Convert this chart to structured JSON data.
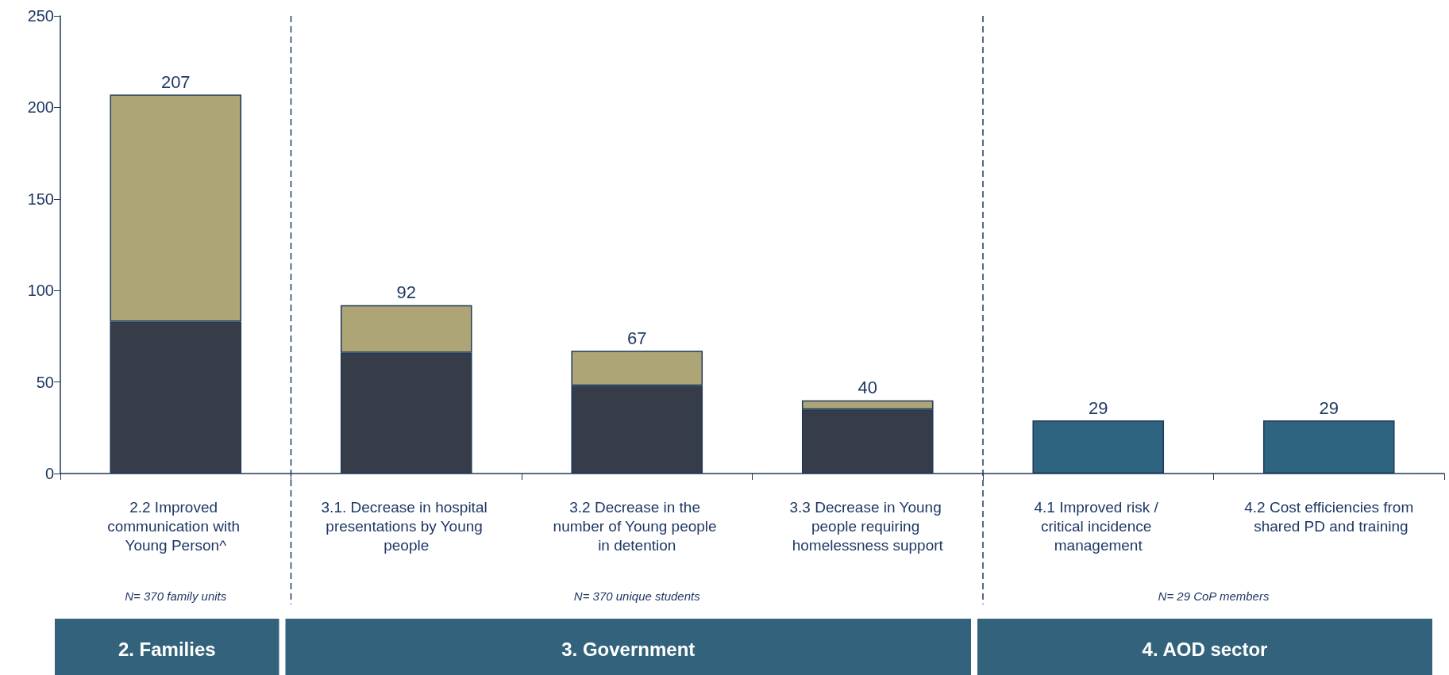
{
  "chart_data": {
    "type": "bar",
    "stacked": true,
    "categories": [
      "2.2 Improved communication with Young Person^",
      "3.1. Decrease in hospital presentations by Young people",
      "3.2 Decrease in the number of Young people in detention",
      "3.3 Decrease in Young people requiring homelessness support",
      "4.1 Improved risk / critical incidence management",
      "4.2 Cost efficiencies from shared PD and training"
    ],
    "series": [
      {
        "color": "#363d48",
        "values": [
          83,
          66,
          48,
          35,
          null,
          null
        ]
      },
      {
        "color": "#aea577",
        "values": [
          124,
          26,
          19,
          5,
          null,
          null
        ]
      },
      {
        "color": "#2f6480",
        "values": [
          null,
          null,
          null,
          null,
          29,
          29
        ]
      }
    ],
    "totals": [
      "207",
      "92",
      "67",
      "40",
      "29",
      "29"
    ],
    "ylim": [
      0,
      250
    ],
    "yticks": [
      0,
      50,
      100,
      150,
      200,
      250
    ],
    "grid": false,
    "annotations": [
      "N= 370 family units",
      "N= 370 unique students",
      "N= 29 CoP members",
      "2. Families",
      "3. Government",
      "4. AOD sector"
    ]
  }
}
